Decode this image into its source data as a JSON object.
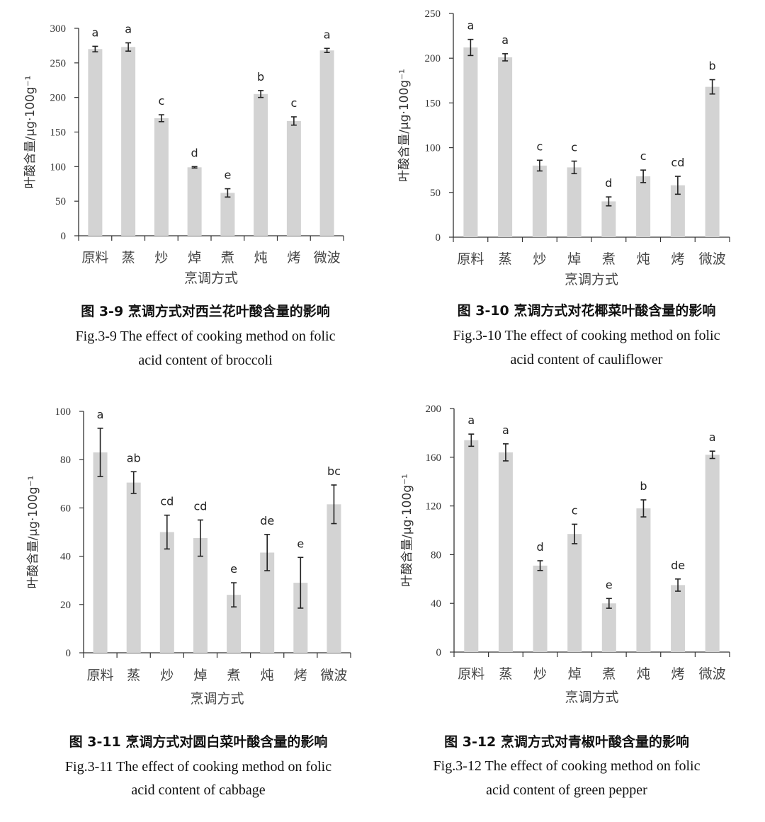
{
  "chart_data": [
    {
      "type": "bar",
      "categories": [
        "原料",
        "蒸",
        "炒",
        "焯",
        "煮",
        "炖",
        "烤",
        "微波"
      ],
      "values": [
        270,
        273,
        170,
        99,
        62,
        205,
        166,
        268
      ],
      "errors": [
        4,
        6,
        5,
        1,
        6,
        5,
        6,
        3
      ],
      "significance": [
        "a",
        "a",
        "c",
        "d",
        "e",
        "b",
        "c",
        "a"
      ],
      "xlabel": "烹调方式",
      "ylabel": "叶酸含量/μg·100g⁻¹",
      "ylim": [
        0,
        300
      ],
      "yticks": [
        "0",
        "50",
        "100",
        "150",
        "200",
        "250",
        "300"
      ],
      "caption_cn": "图 3-9  烹调方式对西兰花叶酸含量的影响",
      "caption_en_1": "Fig.3-9 The effect of cooking method on folic",
      "caption_en_2": "acid content of broccoli",
      "bar_color": "#d3d3d3",
      "grid": false
    },
    {
      "type": "bar",
      "categories": [
        "原料",
        "蒸",
        "炒",
        "焯",
        "煮",
        "炖",
        "烤",
        "微波"
      ],
      "values": [
        212,
        201,
        80,
        78,
        40,
        68,
        58,
        168
      ],
      "errors": [
        9,
        4,
        6,
        7,
        5,
        7,
        10,
        8
      ],
      "significance": [
        "a",
        "a",
        "c",
        "c",
        "d",
        "c",
        "cd",
        "b"
      ],
      "xlabel": "烹调方式",
      "ylabel": "叶酸含量/μg·100g⁻¹",
      "ylim": [
        0,
        250
      ],
      "yticks": [
        "0",
        "50",
        "100",
        "150",
        "200",
        "250"
      ],
      "caption_cn": "图 3-10  烹调方式对花椰菜叶酸含量的影响",
      "caption_en_1": "Fig.3-10 The effect of cooking method on folic",
      "caption_en_2": "acid content of cauliflower",
      "bar_color": "#d3d3d3",
      "grid": false
    },
    {
      "type": "bar",
      "categories": [
        "原料",
        "蒸",
        "炒",
        "焯",
        "煮",
        "炖",
        "烤",
        "微波"
      ],
      "values": [
        83,
        70.5,
        50,
        47.5,
        24,
        41.5,
        29,
        61.5
      ],
      "errors": [
        10,
        4.5,
        7,
        7.5,
        5,
        7.5,
        10.5,
        8
      ],
      "significance": [
        "a",
        "ab",
        "cd",
        "cd",
        "e",
        "de",
        "e",
        "bc"
      ],
      "xlabel": "烹调方式",
      "ylabel": "叶酸含量/μg·100g⁻¹",
      "ylim": [
        0,
        100
      ],
      "yticks": [
        "0",
        "20",
        "40",
        "60",
        "80",
        "100"
      ],
      "caption_cn": "图 3-11  烹调方式对圆白菜叶酸含量的影响",
      "caption_en_1": "Fig.3-11 The effect of cooking method on folic",
      "caption_en_2": "acid content of cabbage",
      "bar_color": "#d3d3d3",
      "grid": false
    },
    {
      "type": "bar",
      "categories": [
        "原料",
        "蒸",
        "炒",
        "焯",
        "煮",
        "炖",
        "烤",
        "微波"
      ],
      "values": [
        174,
        164,
        71,
        97,
        40,
        118,
        55,
        162
      ],
      "errors": [
        5,
        7,
        4,
        8,
        4,
        7,
        5,
        3
      ],
      "significance": [
        "a",
        "a",
        "d",
        "c",
        "e",
        "b",
        "de",
        "a"
      ],
      "xlabel": "烹调方式",
      "ylabel": "叶酸含量/μg·100g⁻¹",
      "ylim": [
        0,
        200
      ],
      "yticks": [
        "0",
        "40",
        "80",
        "120",
        "160",
        "200"
      ],
      "caption_cn": "图 3-12  烹调方式对青椒叶酸含量的影响",
      "caption_en_1": "Fig.3-12 The effect of cooking method on folic",
      "caption_en_2": "acid content of green pepper",
      "bar_color": "#d3d3d3",
      "grid": false
    }
  ]
}
